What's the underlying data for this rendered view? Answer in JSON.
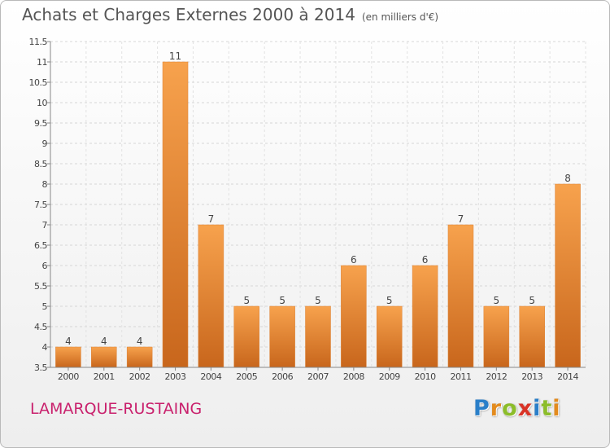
{
  "title": "Achats et Charges Externes 2000 à 2014",
  "title_unit": "(en milliers d'€)",
  "commune": "LAMARQUE-RUSTAING",
  "logo": {
    "letters": [
      "P",
      "r",
      "o",
      "x",
      "i",
      "t",
      "i"
    ],
    "colors": [
      "#2a7fc9",
      "#e38b1e",
      "#8cbd2a",
      "#d93326",
      "#2a7fc9",
      "#8cbd2a",
      "#e38b1e"
    ]
  },
  "colors": {
    "bar_top": "#f7a24d",
    "bar_bottom": "#c8661c",
    "bar_stroke": "#dd8235"
  },
  "chart_data": {
    "type": "bar",
    "categories": [
      "2000",
      "2001",
      "2002",
      "2003",
      "2004",
      "2005",
      "2006",
      "2007",
      "2008",
      "2009",
      "2010",
      "2011",
      "2012",
      "2013",
      "2014"
    ],
    "values": [
      4,
      4,
      4,
      11,
      7,
      5,
      5,
      5,
      6,
      5,
      6,
      7,
      5,
      5,
      8
    ],
    "ylim": [
      3.5,
      11.5
    ],
    "yticks": [
      "3.5",
      "4",
      "4.5",
      "5",
      "5.5",
      "6",
      "6.5",
      "7",
      "7.5",
      "8",
      "8.5",
      "9",
      "9.5",
      "10",
      "10.5",
      "11",
      "11.5"
    ],
    "grid": true
  }
}
